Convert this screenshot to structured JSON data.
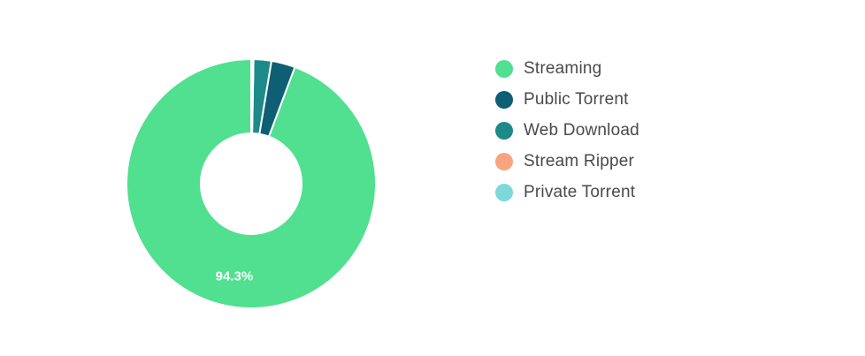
{
  "chart_data": {
    "type": "pie",
    "title": "",
    "categories": [
      "Streaming",
      "Public Torrent",
      "Web Download",
      "Stream Ripper",
      "Private Torrent"
    ],
    "values": [
      94.3,
      3.1,
      2.3,
      0.2,
      0.1
    ],
    "colors": [
      "#50e08f",
      "#0e5e74",
      "#1d8a8a",
      "#f8a57f",
      "#7fd8d8"
    ],
    "data_labels": [
      "94.3%",
      "",
      "",
      "",
      ""
    ],
    "legend_position": "right",
    "donut": true
  }
}
